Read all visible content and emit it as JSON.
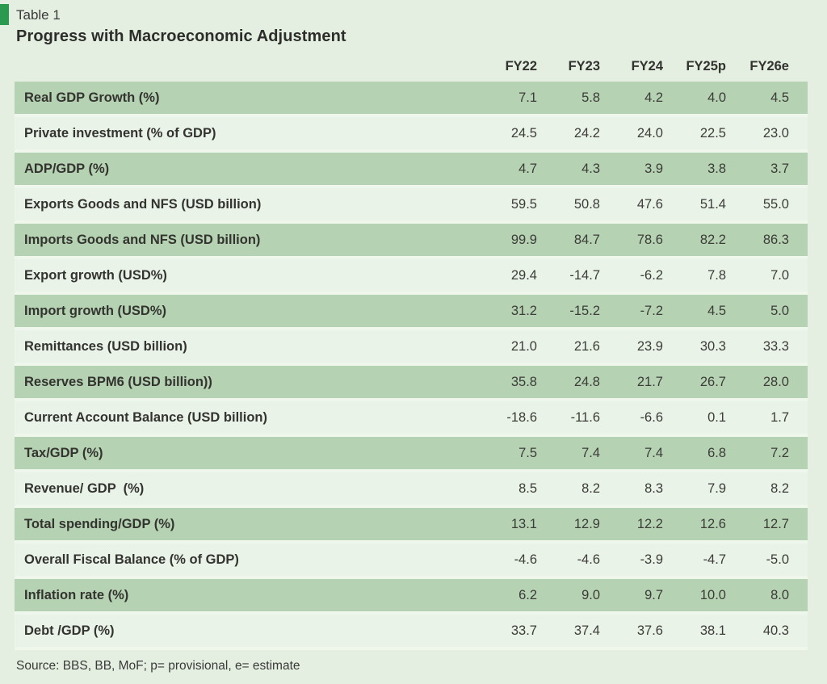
{
  "page": {
    "table_tag": "Table 1",
    "title": "Progress with Macroeconomic Adjustment",
    "source": "Source: BBS, BB, MoF; p= provisional, e= estimate",
    "accent_color": "#2a9b4e",
    "band_green": "#b5d2b2",
    "band_light": "#eaf3e7",
    "background": "#e4efe1"
  },
  "chart_data": {
    "type": "table",
    "title": "Progress with Macroeconomic Adjustment",
    "columns": [
      "FY22",
      "FY23",
      "FY24",
      "FY25p",
      "FY26e"
    ],
    "rows": [
      {
        "label": "Real GDP Growth (%)",
        "values": [
          "7.1",
          "5.8",
          "4.2",
          "4.0",
          "4.5"
        ]
      },
      {
        "label": "Private investment (% of GDP)",
        "values": [
          "24.5",
          "24.2",
          "24.0",
          "22.5",
          "23.0"
        ]
      },
      {
        "label": "ADP/GDP (%)",
        "values": [
          "4.7",
          "4.3",
          "3.9",
          "3.8",
          "3.7"
        ]
      },
      {
        "label": "Exports Goods and NFS (USD billion)",
        "values": [
          "59.5",
          "50.8",
          "47.6",
          "51.4",
          "55.0"
        ]
      },
      {
        "label": "Imports Goods and NFS (USD billion)",
        "values": [
          "99.9",
          "84.7",
          "78.6",
          "82.2",
          "86.3"
        ]
      },
      {
        "label": "Export growth (USD%)",
        "values": [
          "29.4",
          "-14.7",
          "-6.2",
          "7.8",
          "7.0"
        ]
      },
      {
        "label": "Import growth (USD%)",
        "values": [
          "31.2",
          "-15.2",
          "-7.2",
          "4.5",
          "5.0"
        ]
      },
      {
        "label": "Remittances (USD billion)",
        "values": [
          "21.0",
          "21.6",
          "23.9",
          "30.3",
          "33.3"
        ]
      },
      {
        "label": "Reserves BPM6 (USD billion))",
        "values": [
          "35.8",
          "24.8",
          "21.7",
          "26.7",
          "28.0"
        ]
      },
      {
        "label": "Current Account Balance (USD billion)",
        "values": [
          "-18.6",
          "-11.6",
          "-6.6",
          "0.1",
          "1.7"
        ]
      },
      {
        "label": "Tax/GDP (%)",
        "values": [
          "7.5",
          "7.4",
          "7.4",
          "6.8",
          "7.2"
        ]
      },
      {
        "label": "Revenue/ GDP  (%)",
        "values": [
          "8.5",
          "8.2",
          "8.3",
          "7.9",
          "8.2"
        ]
      },
      {
        "label": "Total spending/GDP (%)",
        "values": [
          "13.1",
          "12.9",
          "12.2",
          "12.6",
          "12.7"
        ]
      },
      {
        "label": "Overall Fiscal Balance (% of GDP)",
        "values": [
          "-4.6",
          "-4.6",
          "-3.9",
          "-4.7",
          "-5.0"
        ]
      },
      {
        "label": "Inflation rate (%)",
        "values": [
          "6.2",
          "9.0",
          "9.7",
          "10.0",
          "8.0"
        ]
      },
      {
        "label": "Debt /GDP (%)",
        "values": [
          "33.7",
          "37.4",
          "37.6",
          "38.1",
          "40.3"
        ]
      }
    ]
  }
}
